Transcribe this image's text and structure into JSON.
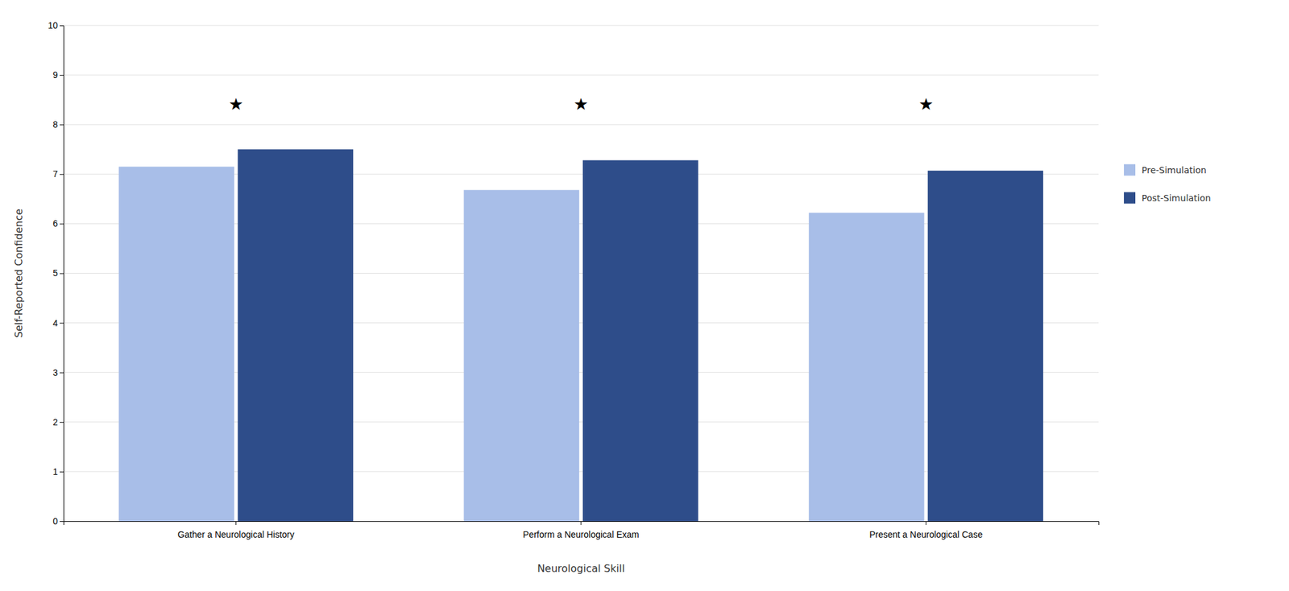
{
  "chart_data": {
    "type": "bar",
    "xlabel": "Neurological Skill",
    "ylabel": "Self-Reported Confidence",
    "categories": [
      "Gather a Neurological History",
      "Perform a Neurological Exam",
      "Present a Neurological Case"
    ],
    "series": [
      {
        "name": "Pre-Simulation",
        "color": "#a8bee8",
        "values": [
          7.15,
          6.68,
          6.22
        ]
      },
      {
        "name": "Post-Simulation",
        "color": "#2e4d8a",
        "values": [
          7.5,
          7.28,
          7.07
        ]
      }
    ],
    "annotations": [
      {
        "text": "★",
        "x": "Gather a Neurological History",
        "y": 8.3
      },
      {
        "text": "★",
        "x": "Perform a Neurological Exam",
        "y": 8.3
      },
      {
        "text": "★",
        "x": "Present a Neurological Case",
        "y": 8.3
      }
    ],
    "ylim": [
      0,
      10
    ],
    "yticks": [
      0,
      1,
      2,
      3,
      4,
      5,
      6,
      7,
      8,
      9,
      10
    ],
    "grid": true,
    "legend": "right"
  }
}
